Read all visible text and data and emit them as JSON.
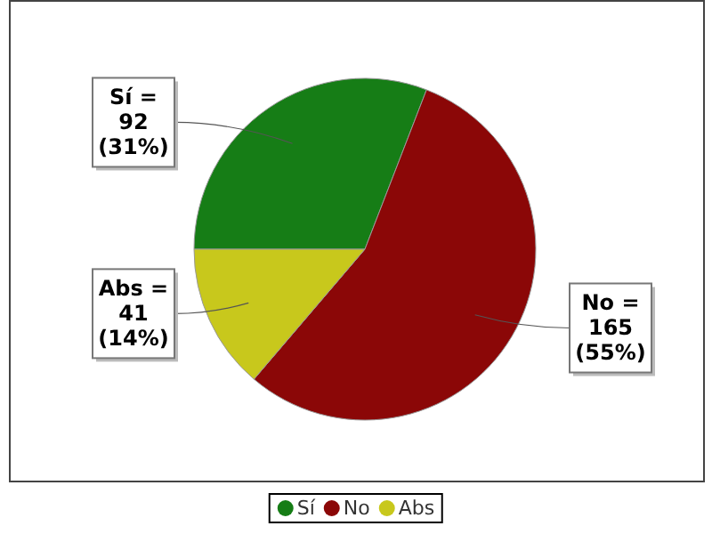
{
  "chart_data": {
    "type": "pie",
    "categories": [
      "Sí",
      "No",
      "Abs"
    ],
    "values": [
      92,
      165,
      41
    ],
    "colors": [
      "#167d16",
      "#8b0707",
      "#c8c81c"
    ],
    "value_labels": [
      "Sí =\n92\n(31%)",
      "No =\n165\n(55%)",
      "Abs =\n41\n(14%)"
    ],
    "legend": "bottom"
  }
}
